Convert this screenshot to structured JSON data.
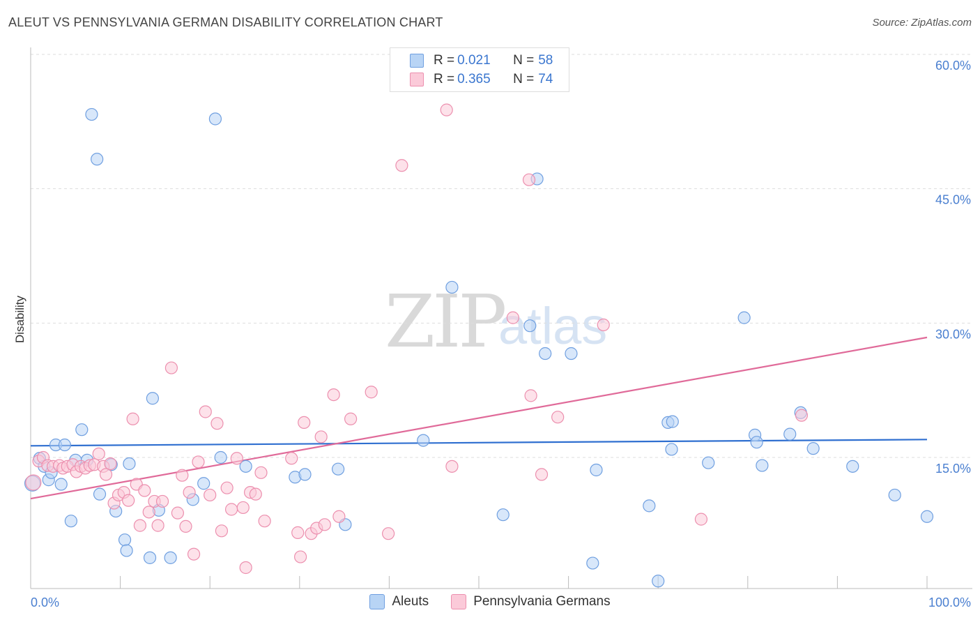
{
  "title": "ALEUT VS PENNSYLVANIA GERMAN DISABILITY CORRELATION CHART",
  "source": "Source: ZipAtlas.com",
  "watermark": {
    "part1": "ZIP",
    "part2": "atlas"
  },
  "legend": {
    "rows": [
      {
        "r_label": "R =",
        "r_value": "0.021",
        "n_label": "N =",
        "n_value": "58"
      },
      {
        "r_label": "R =",
        "r_value": "0.365",
        "n_label": "N =",
        "n_value": "74"
      }
    ]
  },
  "bottom_legend": [
    "Aleuts",
    "Pennsylvania Germans"
  ],
  "colors": {
    "aleut_fill": "#b8d4f5",
    "aleut_stroke": "#6f9fe0",
    "aleut_line": "#2f6fd0",
    "penn_fill": "#fbcad9",
    "penn_stroke": "#ec8fae",
    "penn_line": "#e06a99",
    "tick_text": "#4a7fd0",
    "grid": "#dddddd"
  },
  "chart_data": {
    "type": "scatter",
    "title": "ALEUT VS PENNSYLVANIA GERMAN DISABILITY CORRELATION CHART",
    "xlabel": "",
    "ylabel": "Disability",
    "xlim": [
      0,
      100
    ],
    "ylim": [
      0,
      60
    ],
    "x_tick_labels": [
      "0.0%",
      "100.0%"
    ],
    "y_ticks": [
      15,
      30,
      45,
      60
    ],
    "y_tick_labels": [
      "15.0%",
      "30.0%",
      "45.0%",
      "60.0%"
    ],
    "grid": "horizontal dashed",
    "series": [
      {
        "name": "Aleuts",
        "r": 0.021,
        "n": 58,
        "trend": {
          "x": [
            0,
            100
          ],
          "y": [
            16.3,
            17.0
          ]
        },
        "points": [
          [
            0.2,
            12.1
          ],
          [
            1.0,
            14.9
          ],
          [
            1.5,
            14.0
          ],
          [
            2.0,
            12.5
          ],
          [
            2.3,
            13.3
          ],
          [
            2.8,
            16.4
          ],
          [
            3.4,
            12.0
          ],
          [
            3.8,
            16.4
          ],
          [
            4.5,
            7.9
          ],
          [
            5.0,
            14.7
          ],
          [
            5.7,
            18.1
          ],
          [
            6.3,
            14.7
          ],
          [
            7.4,
            48.3
          ],
          [
            7.7,
            10.9
          ],
          [
            6.8,
            53.3
          ],
          [
            9.0,
            14.2
          ],
          [
            9.5,
            9.0
          ],
          [
            10.5,
            5.8
          ],
          [
            10.7,
            4.6
          ],
          [
            11.0,
            14.3
          ],
          [
            13.3,
            3.8
          ],
          [
            13.6,
            21.6
          ],
          [
            14.3,
            9.1
          ],
          [
            15.6,
            3.8
          ],
          [
            18.1,
            10.3
          ],
          [
            19.3,
            12.1
          ],
          [
            20.6,
            52.8
          ],
          [
            21.2,
            15.0
          ],
          [
            24.0,
            14.0
          ],
          [
            29.5,
            12.8
          ],
          [
            30.6,
            13.1
          ],
          [
            34.3,
            13.7
          ],
          [
            35.1,
            7.5
          ],
          [
            43.8,
            16.9
          ],
          [
            47.0,
            34.0
          ],
          [
            52.7,
            8.6
          ],
          [
            55.7,
            29.7
          ],
          [
            56.5,
            46.1
          ],
          [
            57.4,
            26.6
          ],
          [
            60.3,
            26.6
          ],
          [
            62.7,
            3.2
          ],
          [
            63.1,
            13.6
          ],
          [
            69.0,
            9.6
          ],
          [
            70.0,
            1.2
          ],
          [
            71.1,
            18.9
          ],
          [
            71.6,
            19.0
          ],
          [
            71.5,
            15.9
          ],
          [
            75.6,
            14.4
          ],
          [
            79.6,
            30.6
          ],
          [
            80.8,
            17.5
          ],
          [
            81.0,
            16.7
          ],
          [
            81.6,
            14.1
          ],
          [
            84.7,
            17.6
          ],
          [
            85.9,
            20.0
          ],
          [
            87.3,
            16.0
          ],
          [
            91.7,
            14.0
          ],
          [
            96.4,
            10.8
          ],
          [
            100.0,
            8.4
          ]
        ]
      },
      {
        "name": "Pennsylvania Germans",
        "r": 0.365,
        "n": 74,
        "trend": {
          "x": [
            0,
            100
          ],
          "y": [
            10.4,
            28.4
          ]
        },
        "points": [
          [
            0.3,
            12.2
          ],
          [
            0.9,
            14.6
          ],
          [
            1.4,
            15.0
          ],
          [
            1.9,
            14.1
          ],
          [
            2.5,
            14.0
          ],
          [
            3.2,
            14.1
          ],
          [
            3.6,
            13.8
          ],
          [
            4.1,
            14.0
          ],
          [
            4.7,
            14.2
          ],
          [
            5.1,
            13.4
          ],
          [
            5.6,
            14.0
          ],
          [
            6.1,
            13.8
          ],
          [
            6.6,
            14.1
          ],
          [
            7.1,
            14.2
          ],
          [
            7.6,
            15.4
          ],
          [
            8.1,
            14.0
          ],
          [
            8.4,
            13.1
          ],
          [
            8.9,
            14.3
          ],
          [
            9.3,
            9.9
          ],
          [
            9.8,
            10.8
          ],
          [
            10.4,
            11.1
          ],
          [
            10.9,
            10.2
          ],
          [
            11.4,
            19.3
          ],
          [
            11.8,
            12.0
          ],
          [
            12.2,
            7.4
          ],
          [
            12.7,
            11.3
          ],
          [
            13.2,
            8.9
          ],
          [
            13.8,
            10.1
          ],
          [
            14.2,
            7.4
          ],
          [
            14.7,
            10.1
          ],
          [
            15.7,
            25.0
          ],
          [
            16.4,
            8.8
          ],
          [
            16.9,
            13.0
          ],
          [
            17.3,
            7.3
          ],
          [
            17.7,
            11.1
          ],
          [
            18.2,
            4.2
          ],
          [
            18.7,
            14.5
          ],
          [
            19.5,
            20.1
          ],
          [
            20.0,
            10.8
          ],
          [
            20.8,
            18.8
          ],
          [
            21.3,
            6.8
          ],
          [
            21.9,
            11.6
          ],
          [
            22.4,
            9.2
          ],
          [
            23.0,
            14.9
          ],
          [
            23.7,
            9.4
          ],
          [
            24.0,
            2.7
          ],
          [
            24.5,
            11.1
          ],
          [
            25.1,
            10.9
          ],
          [
            25.7,
            13.3
          ],
          [
            26.1,
            7.9
          ],
          [
            29.1,
            14.9
          ],
          [
            29.8,
            6.6
          ],
          [
            30.1,
            3.9
          ],
          [
            30.5,
            18.9
          ],
          [
            31.3,
            6.5
          ],
          [
            31.9,
            7.1
          ],
          [
            32.4,
            17.3
          ],
          [
            32.8,
            7.5
          ],
          [
            33.8,
            22.0
          ],
          [
            34.4,
            8.4
          ],
          [
            35.7,
            19.3
          ],
          [
            38.0,
            22.3
          ],
          [
            39.9,
            6.5
          ],
          [
            41.4,
            47.6
          ],
          [
            46.4,
            53.8
          ],
          [
            47.0,
            14.0
          ],
          [
            53.8,
            30.6
          ],
          [
            55.6,
            46.0
          ],
          [
            55.8,
            21.9
          ],
          [
            57.0,
            13.1
          ],
          [
            58.8,
            19.5
          ],
          [
            63.9,
            29.8
          ],
          [
            74.8,
            8.1
          ],
          [
            86.0,
            19.7
          ]
        ]
      }
    ]
  }
}
